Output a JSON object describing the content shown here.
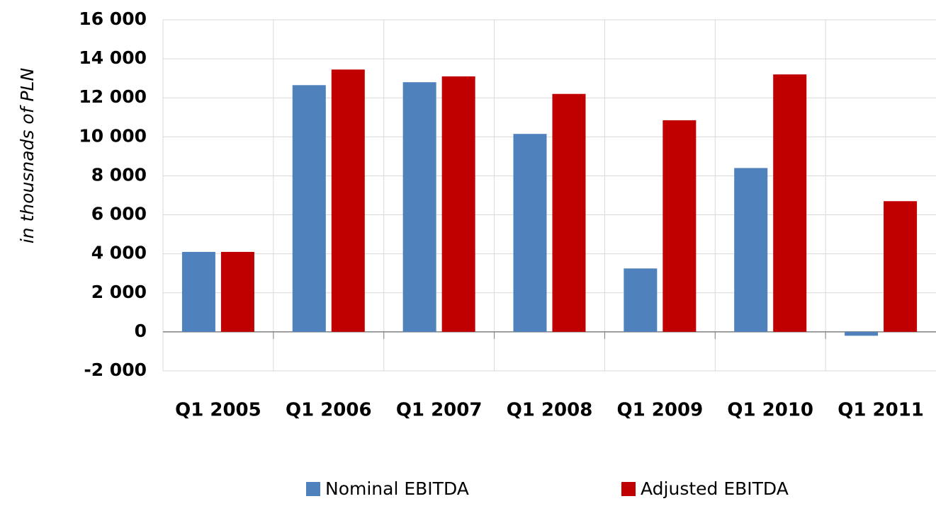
{
  "chart_data": {
    "type": "bar",
    "y_axis_label": "in thousnads of PLN",
    "categories": [
      "Q1 2005",
      "Q1 2006",
      "Q1 2007",
      "Q1 2008",
      "Q1 2009",
      "Q1 2010",
      "Q1 2011"
    ],
    "series": [
      {
        "name": "Nominal EBITDA",
        "color": "#4f81bd",
        "values": [
          4100,
          12650,
          12800,
          10150,
          3250,
          8400,
          -200
        ]
      },
      {
        "name": "Adjusted EBITDA",
        "color": "#c00000",
        "values": [
          4100,
          13450,
          13100,
          12200,
          10850,
          13200,
          6700
        ]
      }
    ],
    "ylim": [
      -2000,
      16000
    ],
    "yticks": [
      {
        "value": -2000,
        "label": "-2 000"
      },
      0,
      {
        "value": 2000,
        "label": "2 000"
      },
      {
        "value": 4000,
        "label": "4 000"
      },
      {
        "value": 6000,
        "label": "6 000"
      },
      {
        "value": 8000,
        "label": "8 000"
      },
      {
        "value": 10000,
        "label": "10 000"
      },
      {
        "value": 12000,
        "label": "12 000"
      },
      {
        "value": 14000,
        "label": "14 000"
      },
      {
        "value": 16000,
        "label": "16 000"
      }
    ],
    "grid": true,
    "legend": "bottom"
  }
}
